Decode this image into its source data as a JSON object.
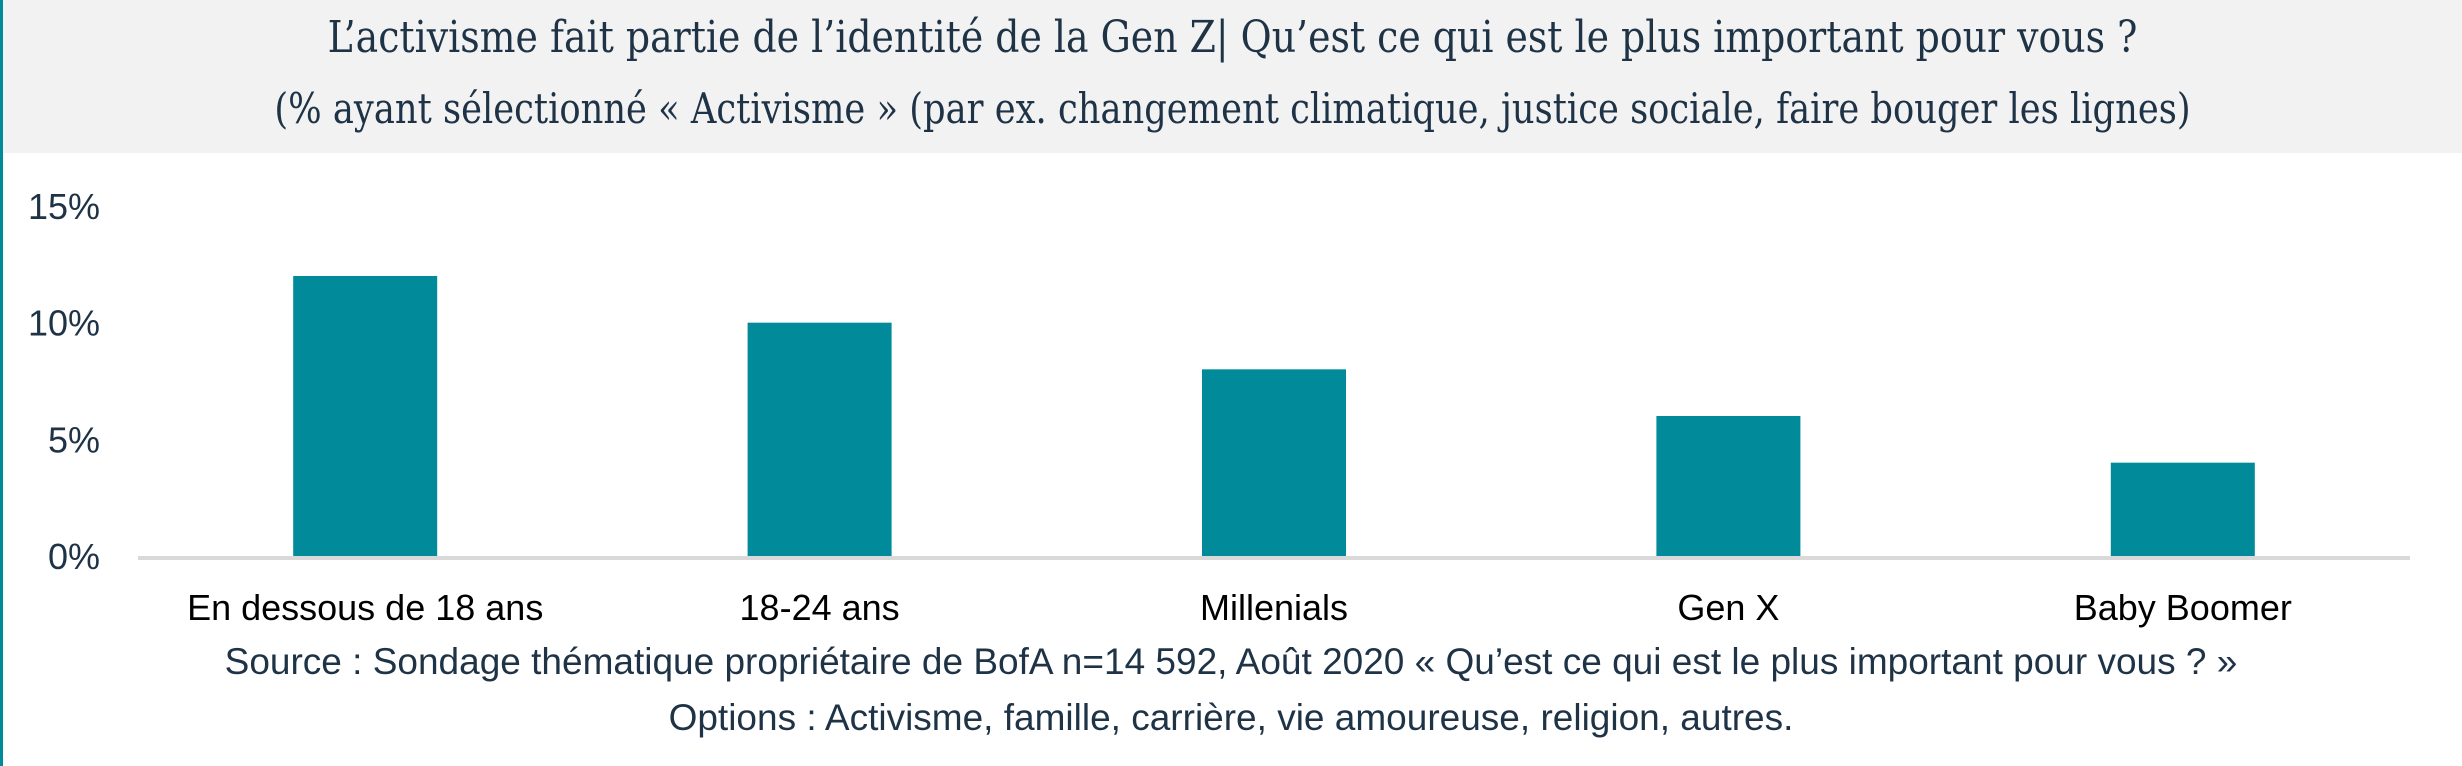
{
  "chart_data": {
    "type": "bar",
    "title": "L’activisme fait partie de l’identité de la Gen Z| Qu’est ce qui est le plus important pour vous ?",
    "subtitle": "(% ayant sélectionné « Activisme » (par ex. changement climatique, justice sociale, faire bouger les lignes)",
    "categories": [
      "En dessous de 18 ans",
      "18-24 ans",
      "Millenials",
      "Gen X",
      "Baby Boomer"
    ],
    "values": [
      12,
      10,
      8,
      6,
      4
    ],
    "ylim": [
      0,
      15
    ],
    "yticks": [
      0,
      5,
      10,
      15
    ],
    "ytick_labels": [
      "0%",
      "5%",
      "10%",
      "15%"
    ],
    "xlabel": "",
    "ylabel": "",
    "grid": false,
    "bar_color": "#008a9a",
    "source": "Source : Sondage thématique propriétaire de BofA n=14 592, Août 2020 « Qu’est ce qui est le plus important pour vous ? »",
    "note": "Options : Activisme, famille, carrière, vie amoureuse, religion, autres."
  }
}
